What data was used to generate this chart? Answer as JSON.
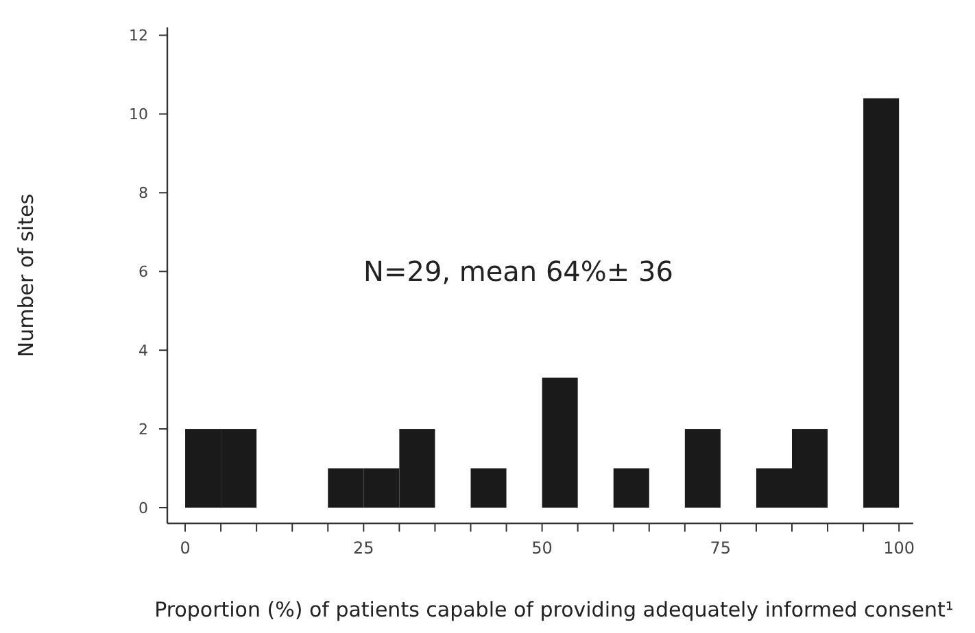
{
  "chart_data": {
    "type": "histogram",
    "xlabel": "Proportion (%) of patients capable of providing adequately informed consent¹",
    "ylabel": "Number of sites",
    "annotations": [
      "N=29, mean 64%± 36"
    ],
    "bins": [
      0,
      5,
      10,
      15,
      20,
      25,
      30,
      35,
      40,
      45,
      50,
      55,
      60,
      65,
      70,
      75,
      80,
      85,
      90,
      95,
      100
    ],
    "values": [
      2,
      2,
      0,
      0,
      1,
      1,
      2,
      0,
      1,
      0,
      3.3,
      0,
      1,
      0,
      2,
      0,
      1,
      2,
      0,
      10.4
    ],
    "color": "#1a1a1a",
    "xlim": [
      -2.5,
      102
    ],
    "ylim": [
      -0.4,
      12.2
    ],
    "xticks": [
      0,
      {
        "value": 5,
        "label": null
      },
      {
        "value": 10,
        "label": null
      },
      {
        "value": 15,
        "label": null
      },
      {
        "value": 20,
        "label": null
      },
      25,
      {
        "value": 30,
        "label": null
      },
      {
        "value": 35,
        "label": null
      },
      {
        "value": 40,
        "label": null
      },
      {
        "value": 45,
        "label": null
      },
      50,
      {
        "value": 55,
        "label": null
      },
      {
        "value": 60,
        "label": null
      },
      {
        "value": 65,
        "label": null
      },
      {
        "value": 70,
        "label": null
      },
      75,
      {
        "value": 80,
        "label": null
      },
      {
        "value": 85,
        "label": null
      },
      {
        "value": 90,
        "label": null
      },
      {
        "value": 95,
        "label": null
      },
      100
    ],
    "yticks": [
      0,
      2,
      4,
      6,
      8,
      10,
      12
    ],
    "grid": false
  }
}
